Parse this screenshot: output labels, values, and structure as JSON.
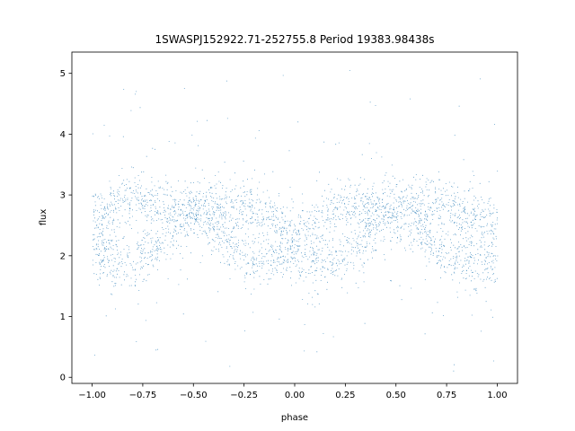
{
  "chart_data": {
    "type": "scatter",
    "title": "1SWASPJ152922.71-252755.8 Period 19383.98438s",
    "xlabel": "phase",
    "ylabel": "flux",
    "xlim": [
      -1.1,
      1.1
    ],
    "ylim": [
      -0.1,
      5.35
    ],
    "xticks": [
      -1.0,
      -0.75,
      -0.5,
      -0.25,
      0.0,
      0.25,
      0.5,
      0.75,
      1.0
    ],
    "xtick_labels": [
      "−1.00",
      "−0.75",
      "−0.50",
      "−0.25",
      "0.00",
      "0.25",
      "0.50",
      "0.75",
      "1.00"
    ],
    "yticks": [
      0,
      1,
      2,
      3,
      4,
      5
    ],
    "ytick_labels": [
      "0",
      "1",
      "2",
      "3",
      "4",
      "5"
    ],
    "grid": false,
    "point_color": "#1f77b4",
    "series": [
      {
        "x_range": [
          -1.0,
          1.0
        ],
        "point_count": 14000,
        "trend": {
          "phase": [
            -1.0,
            -0.9,
            -0.8,
            -0.7,
            -0.6,
            -0.5,
            -0.4,
            -0.3,
            -0.2,
            -0.1,
            0.0,
            0.1,
            0.2,
            0.3,
            0.4,
            0.5,
            0.6,
            0.7,
            0.8,
            0.9,
            1.0
          ],
          "upper_flux": [
            2.6,
            2.8,
            2.95,
            2.9,
            2.8,
            2.8,
            2.85,
            2.85,
            2.75,
            2.55,
            2.3,
            2.55,
            2.75,
            2.8,
            2.8,
            2.8,
            2.85,
            2.85,
            2.75,
            2.6,
            2.55
          ],
          "lower_flux": [
            2.0,
            1.95,
            1.9,
            2.1,
            2.45,
            2.7,
            2.5,
            2.15,
            1.95,
            1.95,
            2.0,
            1.95,
            1.9,
            2.1,
            2.5,
            2.7,
            2.5,
            2.15,
            1.95,
            1.9,
            1.95
          ]
        },
        "outlier_flux_range": [
          0.1,
          5.1
        ]
      }
    ]
  }
}
